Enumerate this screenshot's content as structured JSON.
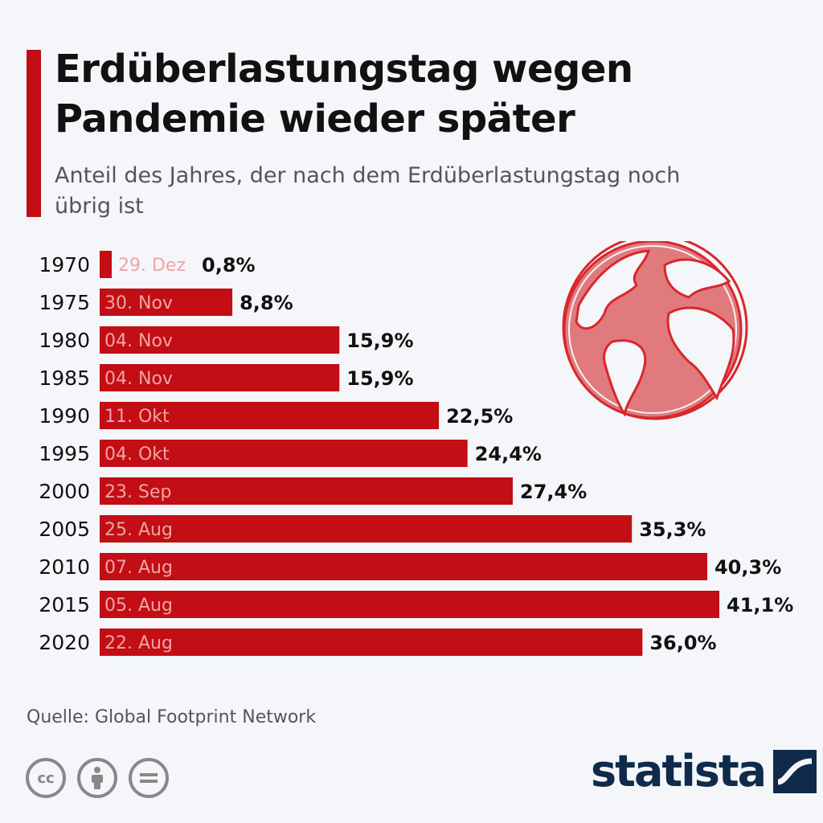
{
  "header": {
    "title": "Erdüberlastungstag wegen Pandemie wieder später",
    "subtitle": "Anteil des Jahres, der nach dem Erdüberlastungstag noch übrig ist"
  },
  "footer": {
    "source": "Quelle: Global Footprint Network",
    "cc_label": "cc",
    "brand": "statista"
  },
  "colors": {
    "bar": "#c20e14",
    "bar_label": "#f0a4a6",
    "accent": "#c20e14",
    "brand": "#0f2a4a"
  },
  "icons": [
    "globe-icon",
    "cc-icon",
    "by-person-icon",
    "nd-equals-icon",
    "statista-logo-icon"
  ],
  "chart_data": {
    "type": "bar",
    "orientation": "horizontal",
    "title": "Erdüberlastungstag wegen Pandemie wieder später",
    "subtitle": "Anteil des Jahres, der nach dem Erdüberlastungstag noch übrig ist",
    "categories": [
      "1970",
      "1975",
      "1980",
      "1985",
      "1990",
      "1995",
      "2000",
      "2005",
      "2010",
      "2015",
      "2020"
    ],
    "values": [
      0.8,
      8.8,
      15.9,
      15.9,
      22.5,
      24.4,
      27.4,
      35.3,
      40.3,
      41.1,
      36.0
    ],
    "value_labels": [
      "0,8%",
      "8,8%",
      "15,9%",
      "15,9%",
      "22,5%",
      "24,4%",
      "27,4%",
      "35,3%",
      "40,3%",
      "41,1%",
      "36,0%"
    ],
    "date_labels": [
      "29. Dez",
      "30. Nov",
      "04. Nov",
      "04. Nov",
      "11. Okt",
      "04. Okt",
      "23. Sep",
      "25. Aug",
      "07. Aug",
      "05. Aug",
      "22. Aug"
    ],
    "xlim": [
      0,
      41.1
    ],
    "grid": false,
    "legend": "none"
  }
}
